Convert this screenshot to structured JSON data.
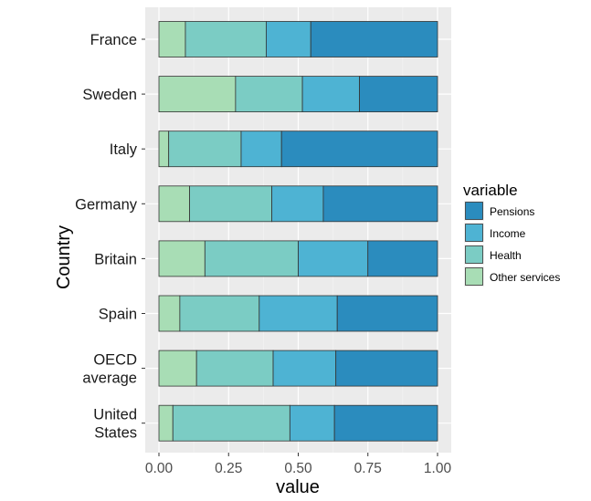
{
  "chart_data": {
    "type": "bar",
    "orientation": "horizontal",
    "stacked": true,
    "xlabel": "value",
    "ylabel": "Country",
    "xlim": [
      0,
      1
    ],
    "x_ticks": [
      0,
      0.25,
      0.5,
      0.75,
      1
    ],
    "x_tick_labels": [
      "0.00",
      "0.25",
      "0.50",
      "0.75",
      "1.00"
    ],
    "grid": true,
    "legend_placement": "right",
    "legend_title": "variable",
    "categories": [
      "France",
      "Sweden",
      "Italy",
      "Germany",
      "Britain",
      "Spain",
      "OECD average",
      "United States"
    ],
    "category_label_lines": [
      [
        "France"
      ],
      [
        "Sweden"
      ],
      [
        "Italy"
      ],
      [
        "Germany"
      ],
      [
        "Britain"
      ],
      [
        "Spain"
      ],
      [
        "OECD",
        "average"
      ],
      [
        "United",
        "States"
      ]
    ],
    "series": [
      {
        "name": "Other services",
        "color": "#a8ddb5",
        "values": [
          0.095,
          0.275,
          0.035,
          0.11,
          0.165,
          0.075,
          0.135,
          0.05
        ]
      },
      {
        "name": "Health",
        "color": "#7bccc4",
        "values": [
          0.29,
          0.24,
          0.26,
          0.295,
          0.335,
          0.285,
          0.275,
          0.42
        ]
      },
      {
        "name": "Income",
        "color": "#4eb3d3",
        "values": [
          0.16,
          0.205,
          0.145,
          0.185,
          0.25,
          0.28,
          0.225,
          0.16
        ]
      },
      {
        "name": "Pensions",
        "color": "#2b8cbe",
        "values": [
          0.455,
          0.28,
          0.56,
          0.41,
          0.25,
          0.36,
          0.365,
          0.37
        ]
      }
    ],
    "legend_order": [
      "Pensions",
      "Income",
      "Health",
      "Other services"
    ]
  }
}
